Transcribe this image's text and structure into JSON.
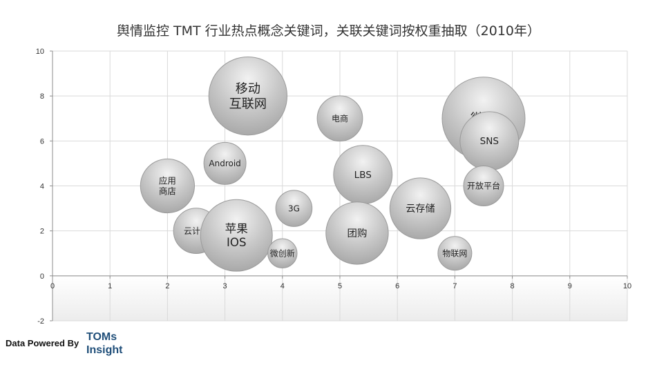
{
  "chart_data": {
    "type": "bubble",
    "title": "舆情监控 TMT 行业热点概念关键词，关联关键词按权重抽取（2010年）",
    "xlim": [
      0,
      10
    ],
    "ylim": [
      -2,
      10
    ],
    "x_ticks": [
      "0",
      "1",
      "2",
      "3",
      "4",
      "5",
      "6",
      "7",
      "8",
      "9",
      "10"
    ],
    "y_ticks": [
      "-2",
      "0",
      "2",
      "4",
      "6",
      "8",
      "10"
    ],
    "grid": true,
    "legend": "none",
    "bubbles": [
      {
        "label": [
          "移动",
          "互联网"
        ],
        "x": 3.4,
        "y": 8.0,
        "size": 107
      },
      {
        "label": [
          "电商"
        ],
        "x": 5.0,
        "y": 7.0,
        "size": 36
      },
      {
        "label": [
          "微博"
        ],
        "x": 7.5,
        "y": 7.0,
        "size": 120
      },
      {
        "label": [
          "SNS"
        ],
        "x": 7.6,
        "y": 6.0,
        "size": 60
      },
      {
        "label": [
          "Android"
        ],
        "x": 3.0,
        "y": 5.0,
        "size": 31
      },
      {
        "label": [
          "LBS"
        ],
        "x": 5.4,
        "y": 4.5,
        "size": 60
      },
      {
        "label": [
          "应用",
          "商店"
        ],
        "x": 2.0,
        "y": 4.0,
        "size": 51
      },
      {
        "label": [
          "开放平台"
        ],
        "x": 7.5,
        "y": 4.0,
        "size": 28
      },
      {
        "label": [
          "3G"
        ],
        "x": 4.2,
        "y": 3.0,
        "size": 23
      },
      {
        "label": [
          "云存储"
        ],
        "x": 6.4,
        "y": 3.0,
        "size": 65
      },
      {
        "label": [
          "云计算"
        ],
        "x": 2.5,
        "y": 2.0,
        "size": 36
      },
      {
        "label": [
          "苹果",
          "IOS"
        ],
        "x": 3.2,
        "y": 1.8,
        "size": 90
      },
      {
        "label": [
          "团购"
        ],
        "x": 5.3,
        "y": 1.9,
        "size": 68
      },
      {
        "label": [
          "微创新"
        ],
        "x": 4.0,
        "y": 1.0,
        "size": 15
      },
      {
        "label": [
          "物联网"
        ],
        "x": 7.0,
        "y": 1.0,
        "size": 20
      }
    ]
  },
  "footer": {
    "powered_by": "Data Powered By",
    "brand_line1": "TOMs",
    "brand_line2": "Insight"
  }
}
